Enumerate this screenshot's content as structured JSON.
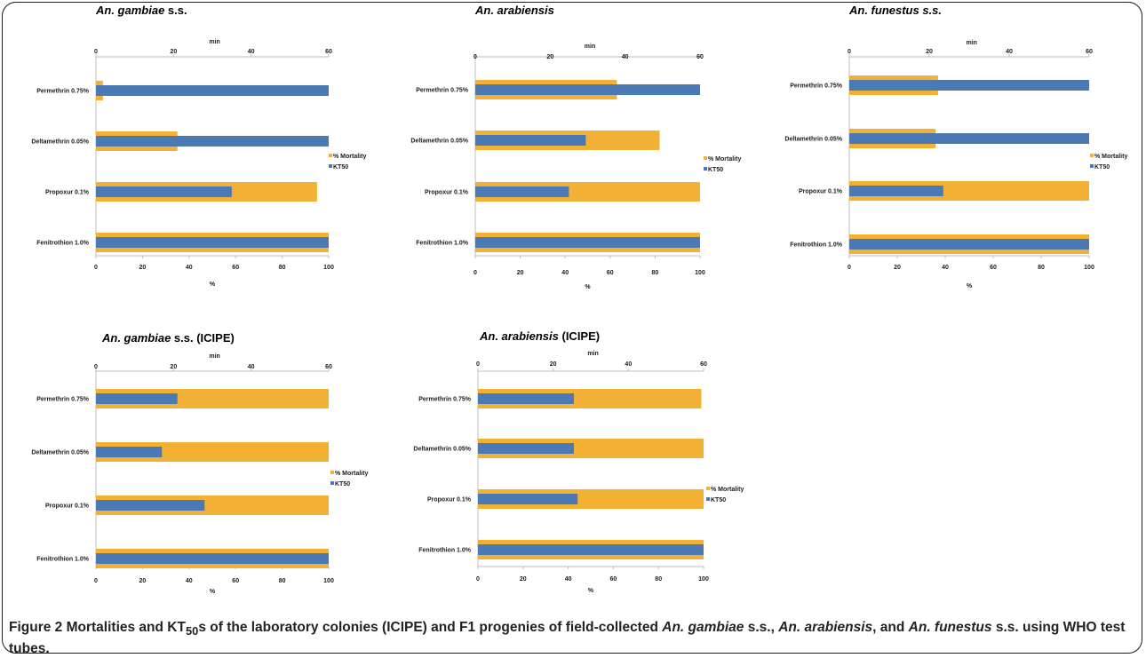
{
  "figure": {
    "label": "Figure 2",
    "caption_parts": [
      {
        "text": "Mortalities and KT",
        "italic": false
      },
      {
        "text": "50",
        "sub": true
      },
      {
        "text": "s of the laboratory colonies (ICIPE) and F1 progenies of field-collected ",
        "italic": false
      },
      {
        "text": "An. gambiae",
        "italic": true
      },
      {
        "text": " s.s., ",
        "italic": false
      },
      {
        "text": "An. arabiensis",
        "italic": true
      },
      {
        "text": ", and ",
        "italic": false
      },
      {
        "text": "An. funestus",
        "italic": true
      },
      {
        "text": " s.s. using WHO test tubes.",
        "italic": false
      }
    ]
  },
  "colors": {
    "mortality": "#f2b035",
    "kt50": "#4a79b5",
    "axis": "#bdbdbd",
    "text": "#1a1a1a"
  },
  "chart_data": [
    {
      "type": "bar",
      "orientation": "horizontal",
      "title_species": "An. gambiae",
      "title_suffix": " s.s.",
      "categories": [
        "Permethrin 0.75%",
        "Deltamethrin 0.05%",
        "Propoxur 0.1%",
        "Fenitrothion 1.0%"
      ],
      "series": [
        {
          "name": "% Mortality",
          "axis": "bottom",
          "values": [
            3,
            35,
            95,
            100
          ]
        },
        {
          "name": "KT50",
          "axis": "top",
          "values": [
            60,
            60,
            35,
            60
          ]
        }
      ],
      "bottom_axis": {
        "label": "%",
        "range": [
          0,
          100
        ],
        "ticks": [
          0,
          20,
          40,
          60,
          80,
          100
        ]
      },
      "top_axis": {
        "label": "min",
        "range": [
          0,
          60
        ],
        "ticks": [
          0,
          20,
          40,
          60
        ]
      },
      "legend_position": "right"
    },
    {
      "type": "bar",
      "orientation": "horizontal",
      "title_species": "An. arabiensis",
      "title_suffix": "",
      "categories": [
        "Permethrin 0.75%",
        "Deltamethrin 0.05%",
        "Propoxur 0.1%",
        "Fenitrothion 1.0%"
      ],
      "series": [
        {
          "name": "% Mortality",
          "axis": "bottom",
          "values": [
            63,
            82,
            100,
            100
          ]
        },
        {
          "name": "KT50",
          "axis": "top",
          "values": [
            60,
            29.5,
            25,
            60
          ]
        }
      ],
      "bottom_axis": {
        "label": "%",
        "range": [
          0,
          100
        ],
        "ticks": [
          0,
          20,
          40,
          60,
          80,
          100
        ]
      },
      "top_axis": {
        "label": "min",
        "range": [
          0,
          60
        ],
        "ticks": [
          0,
          20,
          40,
          60
        ]
      },
      "legend_position": "right"
    },
    {
      "type": "bar",
      "orientation": "horizontal",
      "title_species": "An. funestus s.s.",
      "title_suffix": "",
      "categories": [
        "Permethrin 0.75%",
        "Deltamethrin 0.05%",
        "Propoxur 0.1%",
        "Fenitrothion 1.0%"
      ],
      "series": [
        {
          "name": "% Mortality",
          "axis": "bottom",
          "values": [
            37,
            36,
            100,
            100
          ]
        },
        {
          "name": "KT50",
          "axis": "top",
          "values": [
            60,
            60,
            23.5,
            60
          ]
        }
      ],
      "bottom_axis": {
        "label": "%",
        "range": [
          0,
          100
        ],
        "ticks": [
          0,
          20,
          40,
          60,
          80,
          100
        ]
      },
      "top_axis": {
        "label": "min",
        "range": [
          0,
          60
        ],
        "ticks": [
          0,
          20,
          40,
          60
        ]
      },
      "legend_position": "right"
    },
    {
      "type": "bar",
      "orientation": "horizontal",
      "title_species": "An. gambiae",
      "title_suffix": " s.s. (ICIPE)",
      "categories": [
        "Permethrin 0.75%",
        "Deltamethrin 0.05%",
        "Propoxur 0.1%",
        "Fenitrothion 1.0%"
      ],
      "series": [
        {
          "name": "% Mortality",
          "axis": "bottom",
          "values": [
            100,
            100,
            100,
            100
          ]
        },
        {
          "name": "KT50",
          "axis": "top",
          "values": [
            21,
            17,
            28,
            60
          ]
        }
      ],
      "bottom_axis": {
        "label": "%",
        "range": [
          0,
          100
        ],
        "ticks": [
          0,
          20,
          40,
          60,
          80,
          100
        ]
      },
      "top_axis": {
        "label": "min",
        "range": [
          0,
          60
        ],
        "ticks": [
          0,
          20,
          40,
          60
        ]
      },
      "legend_position": "right"
    },
    {
      "type": "bar",
      "orientation": "horizontal",
      "title_species": "An. arabiensis",
      "title_suffix": " (ICIPE)",
      "categories": [
        "Permethrin 0.75%",
        "Deltamethrin 0.05%",
        "Propoxur 0.1%",
        "Fenitrothion 1.0%"
      ],
      "series": [
        {
          "name": "% Mortality",
          "axis": "bottom",
          "values": [
            99,
            100,
            100,
            100
          ]
        },
        {
          "name": "KT50",
          "axis": "top",
          "values": [
            25.5,
            25.5,
            26.5,
            60
          ]
        }
      ],
      "bottom_axis": {
        "label": "%",
        "range": [
          0,
          100
        ],
        "ticks": [
          0,
          20,
          40,
          60,
          80,
          100
        ]
      },
      "top_axis": {
        "label": "min",
        "range": [
          0,
          60
        ],
        "ticks": [
          0,
          20,
          40,
          60
        ]
      },
      "legend_position": "right"
    }
  ]
}
